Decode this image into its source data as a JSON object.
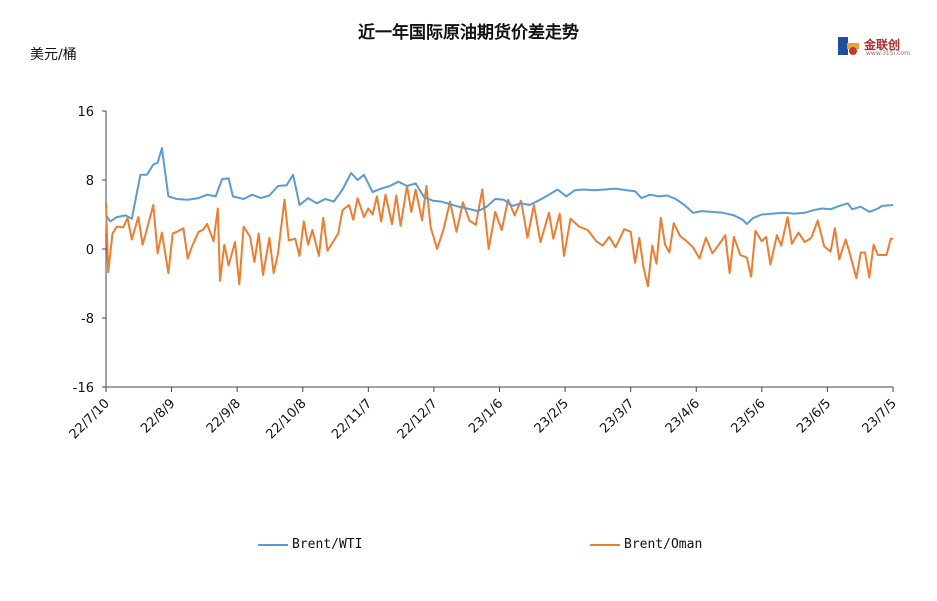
{
  "chart_data": {
    "type": "line",
    "title": "近一年国际原油期货价差走势",
    "ylabel": "美元/桶",
    "ylim": [
      -16,
      16
    ],
    "yticks": [
      "16",
      "8",
      "0",
      "-8",
      "-16"
    ],
    "xticks": [
      "22/7/10",
      "22/8/9",
      "22/9/8",
      "22/10/8",
      "22/11/7",
      "22/12/7",
      "23/1/6",
      "23/2/5",
      "23/3/7",
      "23/4/6",
      "23/5/6",
      "23/6/5",
      "23/7/5"
    ],
    "x_range": [
      "2022-07-10",
      "2023-07-11"
    ],
    "legend_position": "bottom",
    "grid": false,
    "series": [
      {
        "name": "Brent/WTI",
        "color": "#5b9bd5",
        "points": [
          [
            "2022-07-10",
            3.9
          ],
          [
            "2022-07-12",
            3.2
          ],
          [
            "2022-07-15",
            3.7
          ],
          [
            "2022-07-19",
            3.9
          ],
          [
            "2022-07-22",
            3.5
          ],
          [
            "2022-07-26",
            8.6
          ],
          [
            "2022-07-29",
            8.6
          ],
          [
            "2022-08-01",
            9.8
          ],
          [
            "2022-08-03",
            10.0
          ],
          [
            "2022-08-05",
            11.7
          ],
          [
            "2022-08-08",
            6.1
          ],
          [
            "2022-08-12",
            5.8
          ],
          [
            "2022-08-17",
            5.7
          ],
          [
            "2022-08-22",
            5.9
          ],
          [
            "2022-08-26",
            6.3
          ],
          [
            "2022-08-30",
            6.1
          ],
          [
            "2022-09-02",
            8.1
          ],
          [
            "2022-09-05",
            8.2
          ],
          [
            "2022-09-07",
            6.1
          ],
          [
            "2022-09-12",
            5.8
          ],
          [
            "2022-09-16",
            6.3
          ],
          [
            "2022-09-20",
            5.9
          ],
          [
            "2022-09-24",
            6.2
          ],
          [
            "2022-09-28",
            7.3
          ],
          [
            "2022-10-02",
            7.4
          ],
          [
            "2022-10-05",
            8.6
          ],
          [
            "2022-10-08",
            5.1
          ],
          [
            "2022-10-12",
            5.9
          ],
          [
            "2022-10-16",
            5.3
          ],
          [
            "2022-10-20",
            5.8
          ],
          [
            "2022-10-24",
            5.5
          ],
          [
            "2022-10-28",
            6.9
          ],
          [
            "2022-11-01",
            8.8
          ],
          [
            "2022-11-04",
            8.0
          ],
          [
            "2022-11-07",
            8.6
          ],
          [
            "2022-11-11",
            6.6
          ],
          [
            "2022-11-15",
            7.0
          ],
          [
            "2022-11-19",
            7.3
          ],
          [
            "2022-11-23",
            7.8
          ],
          [
            "2022-11-27",
            7.3
          ],
          [
            "2022-12-01",
            7.6
          ],
          [
            "2022-12-05",
            6.0
          ],
          [
            "2022-12-09",
            5.6
          ],
          [
            "2022-12-13",
            5.5
          ],
          [
            "2022-12-17",
            5.2
          ],
          [
            "2022-12-21",
            4.9
          ],
          [
            "2022-12-25",
            4.7
          ],
          [
            "2022-12-30",
            4.4
          ],
          [
            "2023-01-03",
            4.9
          ],
          [
            "2023-01-07",
            5.8
          ],
          [
            "2023-01-11",
            5.7
          ],
          [
            "2023-01-15",
            5.0
          ],
          [
            "2023-01-19",
            5.3
          ],
          [
            "2023-01-23",
            5.1
          ],
          [
            "2023-01-27",
            5.6
          ],
          [
            "2023-02-01",
            6.3
          ],
          [
            "2023-02-05",
            6.9
          ],
          [
            "2023-02-09",
            6.1
          ],
          [
            "2023-02-13",
            6.8
          ],
          [
            "2023-02-17",
            6.9
          ],
          [
            "2023-02-22",
            6.8
          ],
          [
            "2023-02-27",
            6.9
          ],
          [
            "2023-03-04",
            7.0
          ],
          [
            "2023-03-09",
            6.8
          ],
          [
            "2023-03-13",
            6.7
          ],
          [
            "2023-03-16",
            5.9
          ],
          [
            "2023-03-20",
            6.3
          ],
          [
            "2023-03-24",
            6.1
          ],
          [
            "2023-03-28",
            6.2
          ],
          [
            "2023-04-01",
            5.8
          ],
          [
            "2023-04-05",
            5.1
          ],
          [
            "2023-04-09",
            4.2
          ],
          [
            "2023-04-13",
            4.4
          ],
          [
            "2023-04-18",
            4.3
          ],
          [
            "2023-04-23",
            4.2
          ],
          [
            "2023-04-28",
            3.9
          ],
          [
            "2023-05-02",
            3.4
          ],
          [
            "2023-05-04",
            2.9
          ],
          [
            "2023-05-07",
            3.6
          ],
          [
            "2023-05-11",
            4.0
          ],
          [
            "2023-05-16",
            4.1
          ],
          [
            "2023-05-21",
            4.2
          ],
          [
            "2023-05-26",
            4.1
          ],
          [
            "2023-05-31",
            4.2
          ],
          [
            "2023-06-04",
            4.5
          ],
          [
            "2023-06-08",
            4.7
          ],
          [
            "2023-06-12",
            4.6
          ],
          [
            "2023-06-16",
            5.0
          ],
          [
            "2023-06-20",
            5.3
          ],
          [
            "2023-06-22",
            4.6
          ],
          [
            "2023-06-26",
            4.9
          ],
          [
            "2023-06-30",
            4.3
          ],
          [
            "2023-07-04",
            4.7
          ],
          [
            "2023-07-06",
            5.0
          ],
          [
            "2023-07-11",
            5.1
          ]
        ]
      },
      {
        "name": "Brent/Oman",
        "color": "#ed7d31",
        "points": [
          [
            "2022-07-10",
            5.3
          ],
          [
            "2022-07-11",
            -2.7
          ],
          [
            "2022-07-13",
            1.8
          ],
          [
            "2022-07-15",
            2.6
          ],
          [
            "2022-07-18",
            2.5
          ],
          [
            "2022-07-20",
            3.6
          ],
          [
            "2022-07-22",
            1.1
          ],
          [
            "2022-07-25",
            3.7
          ],
          [
            "2022-07-27",
            0.5
          ],
          [
            "2022-07-29",
            2.3
          ],
          [
            "2022-08-01",
            5.1
          ],
          [
            "2022-08-03",
            -0.5
          ],
          [
            "2022-08-05",
            1.9
          ],
          [
            "2022-08-08",
            -2.8
          ],
          [
            "2022-08-10",
            1.8
          ],
          [
            "2022-08-12",
            2.0
          ],
          [
            "2022-08-15",
            2.4
          ],
          [
            "2022-08-17",
            -1.1
          ],
          [
            "2022-08-19",
            0.3
          ],
          [
            "2022-08-22",
            2.0
          ],
          [
            "2022-08-24",
            2.2
          ],
          [
            "2022-08-26",
            2.9
          ],
          [
            "2022-08-29",
            0.9
          ],
          [
            "2022-08-31",
            4.7
          ],
          [
            "2022-09-01",
            -3.7
          ],
          [
            "2022-09-03",
            0.5
          ],
          [
            "2022-09-05",
            -1.9
          ],
          [
            "2022-09-08",
            0.8
          ],
          [
            "2022-09-10",
            -4.1
          ],
          [
            "2022-09-12",
            2.6
          ],
          [
            "2022-09-15",
            1.4
          ],
          [
            "2022-09-17",
            -1.5
          ],
          [
            "2022-09-19",
            1.8
          ],
          [
            "2022-09-21",
            -3.0
          ],
          [
            "2022-09-24",
            1.3
          ],
          [
            "2022-09-26",
            -2.8
          ],
          [
            "2022-09-28",
            -0.5
          ],
          [
            "2022-10-01",
            5.7
          ],
          [
            "2022-10-03",
            1.0
          ],
          [
            "2022-10-06",
            1.2
          ],
          [
            "2022-10-08",
            -0.8
          ],
          [
            "2022-10-10",
            3.2
          ],
          [
            "2022-10-12",
            0.5
          ],
          [
            "2022-10-14",
            2.2
          ],
          [
            "2022-10-17",
            -0.8
          ],
          [
            "2022-10-19",
            3.6
          ],
          [
            "2022-10-21",
            -0.2
          ],
          [
            "2022-10-24",
            1.0
          ],
          [
            "2022-10-26",
            1.8
          ],
          [
            "2022-10-28",
            4.5
          ],
          [
            "2022-10-31",
            5.1
          ],
          [
            "2022-11-02",
            3.4
          ],
          [
            "2022-11-04",
            5.9
          ],
          [
            "2022-11-07",
            3.7
          ],
          [
            "2022-11-09",
            4.7
          ],
          [
            "2022-11-11",
            4.0
          ],
          [
            "2022-11-13",
            6.1
          ],
          [
            "2022-11-15",
            3.2
          ],
          [
            "2022-11-17",
            6.3
          ],
          [
            "2022-11-20",
            2.9
          ],
          [
            "2022-11-22",
            6.2
          ],
          [
            "2022-11-24",
            2.7
          ],
          [
            "2022-11-27",
            7.3
          ],
          [
            "2022-11-29",
            4.3
          ],
          [
            "2022-12-01",
            6.9
          ],
          [
            "2022-12-04",
            3.3
          ],
          [
            "2022-12-06",
            7.3
          ],
          [
            "2022-12-08",
            2.5
          ],
          [
            "2022-12-11",
            0.0
          ],
          [
            "2022-12-14",
            2.3
          ],
          [
            "2022-12-17",
            5.5
          ],
          [
            "2022-12-20",
            2.0
          ],
          [
            "2022-12-23",
            5.4
          ],
          [
            "2022-12-26",
            3.3
          ],
          [
            "2022-12-29",
            2.8
          ],
          [
            "2023-01-01",
            6.9
          ],
          [
            "2023-01-04",
            0.0
          ],
          [
            "2023-01-07",
            4.3
          ],
          [
            "2023-01-10",
            2.2
          ],
          [
            "2023-01-13",
            5.7
          ],
          [
            "2023-01-16",
            3.9
          ],
          [
            "2023-01-19",
            5.6
          ],
          [
            "2023-01-22",
            1.3
          ],
          [
            "2023-01-25",
            5.1
          ],
          [
            "2023-01-28",
            0.8
          ],
          [
            "2023-02-01",
            4.2
          ],
          [
            "2023-02-03",
            1.2
          ],
          [
            "2023-02-06",
            4.1
          ],
          [
            "2023-02-08",
            -0.8
          ],
          [
            "2023-02-11",
            3.5
          ],
          [
            "2023-02-15",
            2.6
          ],
          [
            "2023-02-19",
            2.2
          ],
          [
            "2023-02-23",
            0.9
          ],
          [
            "2023-02-26",
            0.4
          ],
          [
            "2023-03-01",
            1.4
          ],
          [
            "2023-03-04",
            0.2
          ],
          [
            "2023-03-08",
            2.3
          ],
          [
            "2023-03-11",
            2.0
          ],
          [
            "2023-03-13",
            -1.6
          ],
          [
            "2023-03-15",
            1.3
          ],
          [
            "2023-03-17",
            -2.2
          ],
          [
            "2023-03-19",
            -4.3
          ],
          [
            "2023-03-21",
            0.4
          ],
          [
            "2023-03-23",
            -1.7
          ],
          [
            "2023-03-25",
            3.6
          ],
          [
            "2023-03-27",
            0.5
          ],
          [
            "2023-03-29",
            -0.4
          ],
          [
            "2023-03-31",
            3.0
          ],
          [
            "2023-04-03",
            1.5
          ],
          [
            "2023-04-06",
            0.9
          ],
          [
            "2023-04-09",
            0.2
          ],
          [
            "2023-04-12",
            -1.1
          ],
          [
            "2023-04-15",
            1.3
          ],
          [
            "2023-04-18",
            -0.5
          ],
          [
            "2023-04-21",
            0.5
          ],
          [
            "2023-04-24",
            1.6
          ],
          [
            "2023-04-26",
            -2.8
          ],
          [
            "2023-04-28",
            1.4
          ],
          [
            "2023-05-01",
            -0.7
          ],
          [
            "2023-05-04",
            -1.0
          ],
          [
            "2023-05-06",
            -3.2
          ],
          [
            "2023-05-08",
            2.1
          ],
          [
            "2023-05-11",
            0.9
          ],
          [
            "2023-05-13",
            1.4
          ],
          [
            "2023-05-15",
            -1.8
          ],
          [
            "2023-05-18",
            1.6
          ],
          [
            "2023-05-20",
            0.4
          ],
          [
            "2023-05-23",
            3.7
          ],
          [
            "2023-05-25",
            0.6
          ],
          [
            "2023-05-28",
            1.9
          ],
          [
            "2023-05-31",
            0.8
          ],
          [
            "2023-06-03",
            1.3
          ],
          [
            "2023-06-06",
            3.3
          ],
          [
            "2023-06-09",
            0.3
          ],
          [
            "2023-06-12",
            -0.3
          ],
          [
            "2023-06-14",
            2.4
          ],
          [
            "2023-06-16",
            -1.2
          ],
          [
            "2023-06-19",
            1.1
          ],
          [
            "2023-06-21",
            -0.6
          ],
          [
            "2023-06-24",
            -3.4
          ],
          [
            "2023-06-26",
            -0.4
          ],
          [
            "2023-06-28",
            -0.4
          ],
          [
            "2023-06-30",
            -3.3
          ],
          [
            "2023-07-02",
            0.5
          ],
          [
            "2023-07-04",
            -0.7
          ],
          [
            "2023-07-08",
            -0.7
          ],
          [
            "2023-07-10",
            1.2
          ],
          [
            "2023-07-11",
            1.2
          ]
        ]
      }
    ]
  },
  "header": {
    "title": "近一年国际原油期货价差走势",
    "unit": "美元/桶"
  },
  "logo": {
    "name": "金联创",
    "sub": "www.315i.com"
  },
  "legend": {
    "items": [
      "Brent/WTI",
      "Brent/Oman"
    ]
  }
}
